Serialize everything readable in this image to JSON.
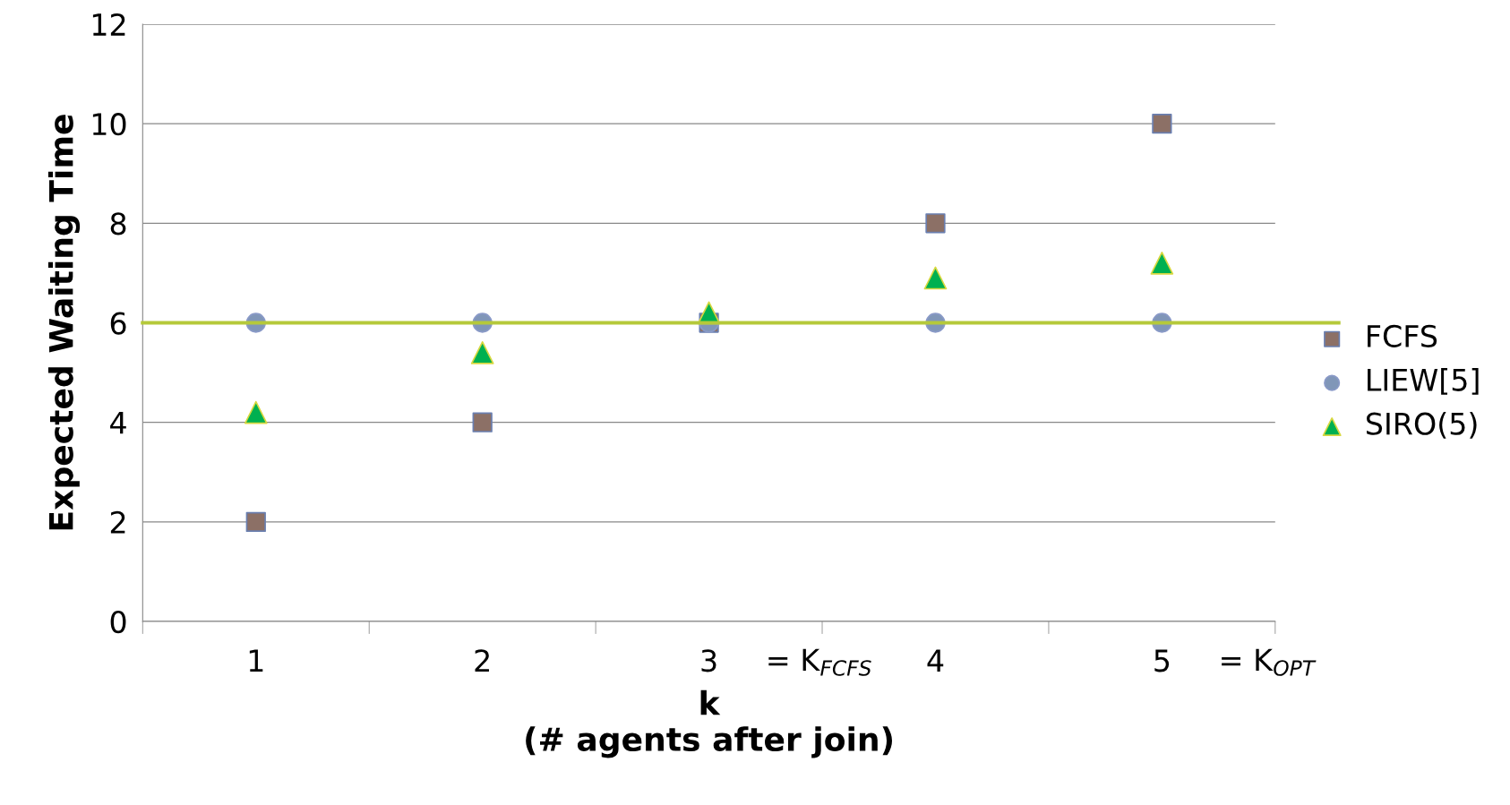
{
  "chart_data": {
    "type": "scatter",
    "xlabel": "k\n(# agents after join)",
    "ylabel": "Expected Waiting Time",
    "categories": [
      "1",
      "2",
      "3",
      "4",
      "5"
    ],
    "series": [
      {
        "name": "FCFS",
        "color": "#8c7066",
        "marker": "square",
        "values": [
          2,
          4,
          6,
          8,
          10
        ]
      },
      {
        "name": "LIEW[5]",
        "color": "#8096b8",
        "marker": "circle",
        "values": [
          6,
          6,
          6,
          6,
          6
        ]
      },
      {
        "name": "SIRO(5)",
        "color": "#00b050",
        "marker": "triangle",
        "values": [
          4.2,
          5.4,
          6.2,
          6.9,
          7.2
        ]
      }
    ],
    "ref_lines": [
      {
        "axis": "y",
        "value": 6,
        "color": "#b5c93a",
        "line_style": "solid"
      }
    ],
    "annotations": [
      "= K$_{FCFS}$",
      "= K$_{OPT}$"
    ],
    "ylim": [
      0,
      12
    ],
    "yticks": [
      0,
      2,
      4,
      6,
      8,
      10,
      12
    ],
    "grid": "y",
    "legend": "right"
  }
}
